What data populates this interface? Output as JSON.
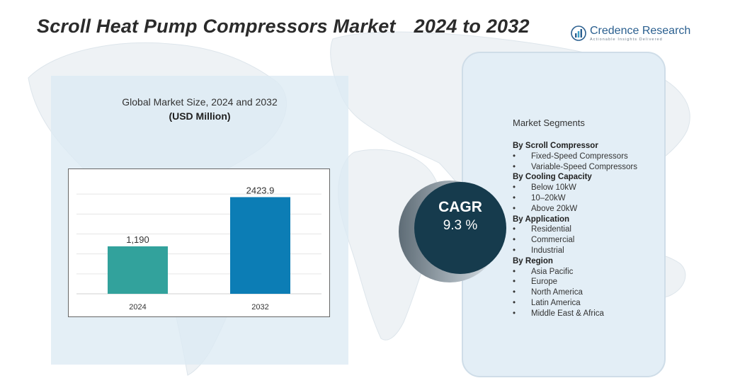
{
  "header": {
    "title": "Scroll Heat Pump Compressors Market",
    "years": "2024 to 2032"
  },
  "logo": {
    "name": "Credence Research",
    "tagline": "Actionable Insights Delivered",
    "icon": "bar-chart-logo-icon",
    "color": "#2a5f8f"
  },
  "chart_data": {
    "type": "bar",
    "title": "Global Market Size, 2024 and 2032",
    "unit": "(USD Million)",
    "categories": [
      "2024",
      "2032"
    ],
    "values": [
      1190,
      2423.9
    ],
    "value_labels": [
      "1,190",
      "2423.9"
    ],
    "colors": [
      "#32a29c",
      "#0c7db5"
    ],
    "ylim": [
      0,
      3000
    ],
    "grid": true,
    "legend": "none"
  },
  "cagr": {
    "label": "CAGR",
    "value": "9.3 %",
    "color": "#163b4d"
  },
  "segments": {
    "title": "Market Segments",
    "groups": [
      {
        "heading": "By Scroll Compressor",
        "items": [
          "Fixed-Speed Compressors",
          "Variable-Speed Compressors"
        ]
      },
      {
        "heading": "By Cooling Capacity",
        "items": [
          "Below 10kW",
          "10–20kW",
          "Above 20kW"
        ]
      },
      {
        "heading": "By  Application",
        "items": [
          "Residential",
          "Commercial",
          "Industrial"
        ]
      },
      {
        "heading": "By Region",
        "items": [
          "Asia Pacific",
          "Europe",
          "North America",
          "Latin America",
          "Middle East & Africa"
        ]
      }
    ]
  }
}
